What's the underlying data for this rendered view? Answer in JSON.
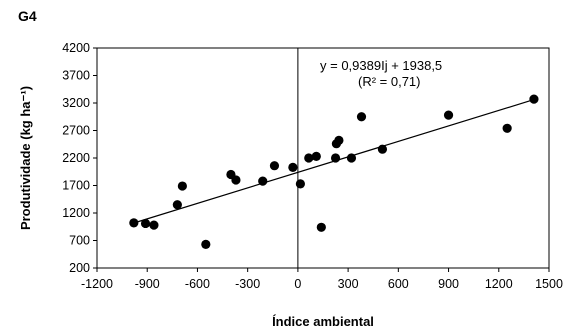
{
  "panel_label": "G4",
  "chart_data": {
    "type": "scatter",
    "title": "",
    "xlabel": "Índice ambiental",
    "ylabel": "Produtividade (kg ha⁻¹)",
    "xlim": [
      -1200,
      1500
    ],
    "ylim": [
      200,
      4200
    ],
    "x_ticks": [
      -1200,
      -900,
      -600,
      -300,
      0,
      300,
      600,
      900,
      1200,
      1500
    ],
    "y_ticks": [
      200,
      700,
      1200,
      1700,
      2200,
      2700,
      3200,
      3700,
      4200
    ],
    "grid": false,
    "reference_lines": {
      "x_zero": true
    },
    "points": [
      {
        "x": -980,
        "y": 1020
      },
      {
        "x": -910,
        "y": 1010
      },
      {
        "x": -860,
        "y": 980
      },
      {
        "x": -720,
        "y": 1350
      },
      {
        "x": -690,
        "y": 1690
      },
      {
        "x": -550,
        "y": 630
      },
      {
        "x": -400,
        "y": 1900
      },
      {
        "x": -370,
        "y": 1800
      },
      {
        "x": -210,
        "y": 1780
      },
      {
        "x": -140,
        "y": 2060
      },
      {
        "x": -30,
        "y": 2030
      },
      {
        "x": 15,
        "y": 1730
      },
      {
        "x": 65,
        "y": 2200
      },
      {
        "x": 110,
        "y": 2230
      },
      {
        "x": 140,
        "y": 940
      },
      {
        "x": 225,
        "y": 2200
      },
      {
        "x": 230,
        "y": 2460
      },
      {
        "x": 245,
        "y": 2520
      },
      {
        "x": 320,
        "y": 2200
      },
      {
        "x": 380,
        "y": 2950
      },
      {
        "x": 505,
        "y": 2360
      },
      {
        "x": 900,
        "y": 2980
      },
      {
        "x": 1250,
        "y": 2740
      },
      {
        "x": 1410,
        "y": 3270
      }
    ],
    "fit_line": {
      "slope": 0.9389,
      "intercept": 1938.5,
      "x_range": [
        -990,
        1400
      ]
    },
    "annotation": {
      "equation": "y = 0,9389Ij  + 1938,5",
      "r2": "(R² = 0,71)"
    }
  }
}
